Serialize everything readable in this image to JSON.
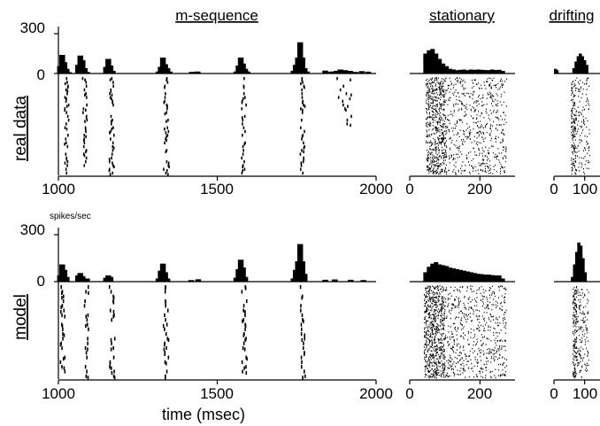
{
  "figure": {
    "columns": [
      "m-sequence",
      "stationary",
      "drifting"
    ],
    "rows": [
      "real data",
      "model"
    ],
    "units_label": "spikes/sec",
    "xlabel": "time (msec)"
  },
  "chart_data": [
    {
      "id": "real-mseq",
      "row": "real data",
      "column": "m-sequence",
      "type": "bar",
      "xlim": [
        1000,
        2000
      ],
      "ylim": [
        0,
        300
      ],
      "yticks": [
        0,
        300
      ],
      "xticks": [
        1000,
        1500,
        2000
      ],
      "hist": [
        [
          1005,
          55
        ],
        [
          1012,
          140
        ],
        [
          1019,
          85
        ],
        [
          1026,
          35
        ],
        [
          1033,
          10
        ],
        [
          1062,
          65
        ],
        [
          1069,
          135
        ],
        [
          1076,
          100
        ],
        [
          1083,
          40
        ],
        [
          1090,
          12
        ],
        [
          1150,
          50
        ],
        [
          1157,
          110
        ],
        [
          1164,
          60
        ],
        [
          1171,
          20
        ],
        [
          1315,
          15
        ],
        [
          1322,
          50
        ],
        [
          1329,
          120
        ],
        [
          1336,
          70
        ],
        [
          1343,
          40
        ],
        [
          1350,
          15
        ],
        [
          1420,
          12
        ],
        [
          1438,
          15
        ],
        [
          1560,
          15
        ],
        [
          1567,
          60
        ],
        [
          1574,
          120
        ],
        [
          1581,
          75
        ],
        [
          1588,
          35
        ],
        [
          1595,
          15
        ],
        [
          1740,
          20
        ],
        [
          1747,
          65
        ],
        [
          1754,
          120
        ],
        [
          1761,
          235
        ],
        [
          1768,
          120
        ],
        [
          1775,
          40
        ],
        [
          1782,
          15
        ],
        [
          1840,
          22
        ],
        [
          1850,
          12
        ],
        [
          1862,
          15
        ],
        [
          1875,
          20
        ],
        [
          1888,
          30
        ],
        [
          1902,
          25
        ],
        [
          1918,
          20
        ],
        [
          1935,
          12
        ],
        [
          1955,
          18
        ],
        [
          1975,
          14
        ]
      ],
      "bursts": [
        [
          1022,
          6,
          26
        ],
        [
          1080,
          6,
          26
        ],
        [
          1163,
          7,
          26
        ],
        [
          1335,
          8,
          26
        ],
        [
          1580,
          7,
          26
        ],
        [
          1765,
          6,
          26
        ],
        [
          1900,
          25,
          14
        ]
      ],
      "raster_trials": 26
    },
    {
      "id": "real-stat",
      "row": "real data",
      "column": "stationary",
      "type": "bar",
      "xlim": [
        0,
        300
      ],
      "ylim": [
        0,
        300
      ],
      "xticks": [
        0,
        200
      ],
      "hist": [
        [
          45,
          150
        ],
        [
          55,
          175
        ],
        [
          65,
          185
        ],
        [
          75,
          150
        ],
        [
          85,
          110
        ],
        [
          95,
          75
        ],
        [
          105,
          55
        ],
        [
          115,
          35
        ],
        [
          125,
          30
        ],
        [
          135,
          25
        ],
        [
          145,
          28
        ],
        [
          155,
          30
        ],
        [
          165,
          25
        ],
        [
          175,
          30
        ],
        [
          185,
          28
        ],
        [
          195,
          30
        ],
        [
          205,
          28
        ],
        [
          215,
          26
        ],
        [
          225,
          25
        ],
        [
          235,
          30
        ],
        [
          245,
          26
        ],
        [
          255,
          28
        ],
        [
          265,
          20
        ]
      ],
      "raster_span": [
        45,
        275
      ],
      "raster_density": 1200
    },
    {
      "id": "real-drift",
      "row": "real data",
      "column": "drifting",
      "type": "bar",
      "xlim": [
        0,
        150
      ],
      "ylim": [
        0,
        300
      ],
      "xticks": [
        0,
        100
      ],
      "hist": [
        [
          5,
          35
        ],
        [
          10,
          25
        ],
        [
          65,
          40
        ],
        [
          72,
          90
        ],
        [
          79,
          130
        ],
        [
          86,
          150
        ],
        [
          93,
          130
        ],
        [
          100,
          100
        ],
        [
          107,
          65
        ]
      ],
      "raster_span": [
        55,
        115
      ],
      "raster_density": 280
    },
    {
      "id": "model-mseq",
      "row": "model",
      "column": "m-sequence",
      "type": "bar",
      "xlim": [
        1000,
        2000
      ],
      "ylim": [
        0,
        300
      ],
      "yticks": [
        0,
        300
      ],
      "xticks": [
        1000,
        1500,
        2000
      ],
      "hist": [
        [
          1005,
          40
        ],
        [
          1012,
          110
        ],
        [
          1019,
          75
        ],
        [
          1026,
          30
        ],
        [
          1062,
          40
        ],
        [
          1069,
          55
        ],
        [
          1076,
          35
        ],
        [
          1090,
          20
        ],
        [
          1150,
          25
        ],
        [
          1157,
          40
        ],
        [
          1164,
          30
        ],
        [
          1315,
          20
        ],
        [
          1322,
          70
        ],
        [
          1329,
          115
        ],
        [
          1336,
          60
        ],
        [
          1343,
          20
        ],
        [
          1418,
          10
        ],
        [
          1440,
          15
        ],
        [
          1560,
          25
        ],
        [
          1567,
          80
        ],
        [
          1574,
          140
        ],
        [
          1581,
          90
        ],
        [
          1588,
          30
        ],
        [
          1740,
          20
        ],
        [
          1747,
          75
        ],
        [
          1754,
          130
        ],
        [
          1761,
          240
        ],
        [
          1768,
          130
        ],
        [
          1775,
          50
        ],
        [
          1840,
          12
        ],
        [
          1870,
          14
        ],
        [
          1920,
          12
        ],
        [
          1960,
          10
        ]
      ],
      "bursts": [
        [
          1010,
          6,
          20
        ],
        [
          1085,
          7,
          20
        ],
        [
          1165,
          7,
          20
        ],
        [
          1335,
          7,
          20
        ],
        [
          1580,
          8,
          20
        ],
        [
          1765,
          6,
          20
        ]
      ],
      "raster_trials": 20
    },
    {
      "id": "model-stat",
      "row": "model",
      "column": "stationary",
      "type": "bar",
      "xlim": [
        0,
        300
      ],
      "ylim": [
        0,
        300
      ],
      "xticks": [
        0,
        200
      ],
      "hist": [
        [
          45,
          60
        ],
        [
          55,
          95
        ],
        [
          65,
          115
        ],
        [
          75,
          125
        ],
        [
          85,
          110
        ],
        [
          95,
          105
        ],
        [
          105,
          100
        ],
        [
          115,
          90
        ],
        [
          125,
          85
        ],
        [
          135,
          80
        ],
        [
          145,
          75
        ],
        [
          155,
          70
        ],
        [
          165,
          65
        ],
        [
          175,
          60
        ],
        [
          185,
          55
        ],
        [
          195,
          50
        ],
        [
          205,
          48
        ],
        [
          215,
          45
        ],
        [
          225,
          45
        ],
        [
          235,
          42
        ],
        [
          245,
          40
        ],
        [
          255,
          40
        ],
        [
          265,
          20
        ]
      ],
      "raster_span": [
        40,
        275
      ],
      "raster_density": 1300
    },
    {
      "id": "model-drift",
      "row": "model",
      "column": "drifting",
      "type": "bar",
      "xlim": [
        0,
        150
      ],
      "ylim": [
        0,
        300
      ],
      "xticks": [
        0,
        100
      ],
      "hist": [
        [
          60,
          30
        ],
        [
          67,
          110
        ],
        [
          74,
          190
        ],
        [
          81,
          250
        ],
        [
          88,
          230
        ],
        [
          95,
          150
        ],
        [
          102,
          60
        ]
      ],
      "raster_span": [
        60,
        112
      ],
      "raster_density": 300
    }
  ]
}
